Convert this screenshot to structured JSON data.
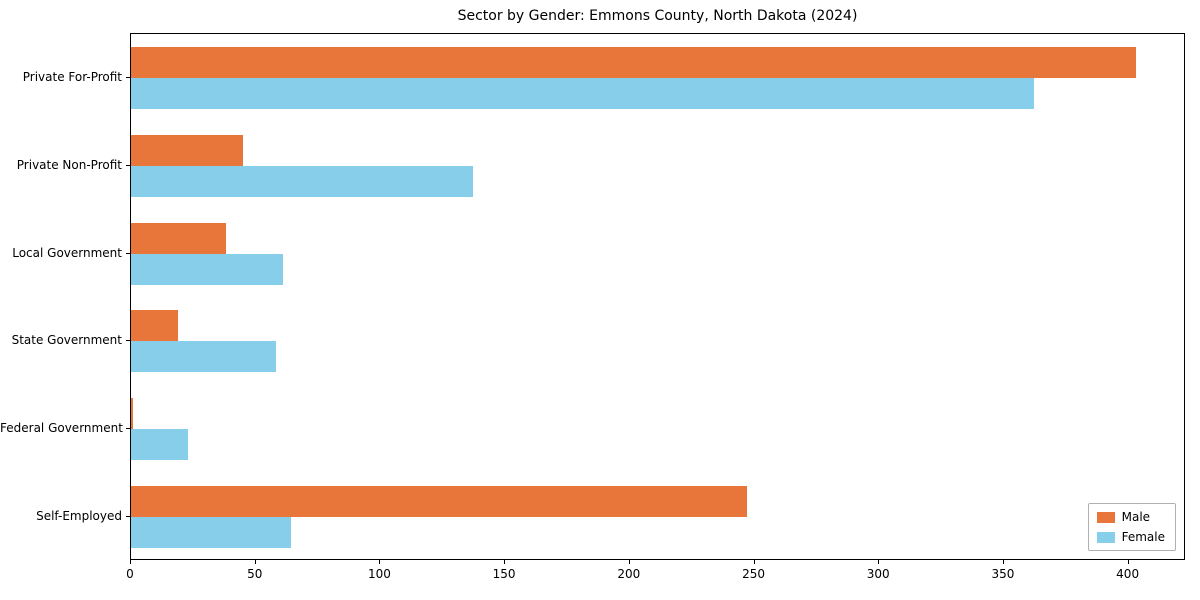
{
  "chart_data": {
    "type": "bar",
    "orientation": "horizontal",
    "title": "Sector by Gender: Emmons County, North Dakota (2024)",
    "categories": [
      "Private For-Profit",
      "Private Non-Profit",
      "Local Government",
      "State Government",
      "Federal Government",
      "Self-Employed"
    ],
    "series": [
      {
        "name": "Male",
        "color": "#e8763b",
        "values": [
          403,
          45,
          38,
          19,
          1,
          247
        ]
      },
      {
        "name": "Female",
        "color": "#87ceeb",
        "values": [
          362,
          137,
          61,
          58,
          23,
          64
        ]
      }
    ],
    "xlim": [
      0,
      423
    ],
    "xticks": [
      0,
      50,
      100,
      150,
      200,
      250,
      300,
      350,
      400
    ],
    "grid": false,
    "legend_position": "lower right"
  }
}
